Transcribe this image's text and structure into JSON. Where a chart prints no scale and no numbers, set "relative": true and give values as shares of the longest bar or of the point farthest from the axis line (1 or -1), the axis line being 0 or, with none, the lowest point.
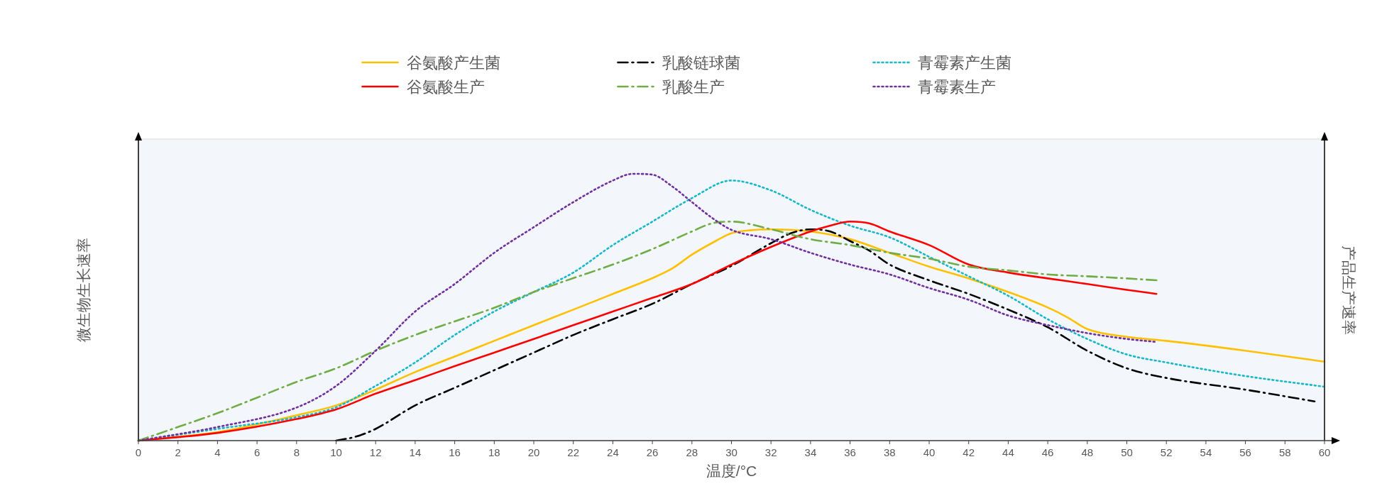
{
  "chart_data": {
    "type": "line",
    "relative": true,
    "xlabel": "温度/°C",
    "ylabel": "微生物生长速率",
    "y2label": "产品生产速率",
    "xlim": [
      0,
      60
    ],
    "xticks": [
      0,
      2,
      4,
      6,
      8,
      10,
      12,
      14,
      16,
      18,
      20,
      22,
      24,
      26,
      28,
      30,
      32,
      34,
      36,
      38,
      40,
      42,
      44,
      46,
      48,
      50,
      52,
      54,
      56,
      58,
      60
    ],
    "legend": "top",
    "series": [
      {
        "name": "谷氨酸产生菌",
        "color": "#ffc000",
        "line_style": "solid",
        "x": [
          0,
          4,
          8,
          10,
          12,
          14,
          16,
          18,
          20,
          22,
          24,
          26,
          27,
          28,
          29,
          30,
          31,
          32,
          34,
          36,
          38,
          40,
          42,
          44,
          46,
          47,
          48,
          50,
          52,
          56,
          60
        ],
        "values": [
          0,
          0.032,
          0.095,
          0.132,
          0.191,
          0.257,
          0.315,
          0.374,
          0.433,
          0.491,
          0.55,
          0.609,
          0.645,
          0.697,
          0.74,
          0.777,
          0.789,
          0.792,
          0.784,
          0.755,
          0.704,
          0.652,
          0.608,
          0.557,
          0.499,
          0.462,
          0.418,
          0.389,
          0.374,
          0.337,
          0.296
        ]
      },
      {
        "name": "乳酸链球菌",
        "color": "#000000",
        "line_style": "dashdot",
        "x": [
          10,
          11,
          12,
          14,
          16,
          18,
          20,
          22,
          24,
          26,
          28,
          30,
          32,
          33,
          34,
          35,
          36,
          37,
          38,
          40,
          42,
          44,
          46,
          48,
          50,
          52,
          56,
          59.5
        ],
        "values": [
          0,
          0.015,
          0.044,
          0.132,
          0.198,
          0.264,
          0.33,
          0.396,
          0.455,
          0.513,
          0.587,
          0.655,
          0.74,
          0.777,
          0.792,
          0.784,
          0.748,
          0.711,
          0.66,
          0.601,
          0.55,
          0.491,
          0.425,
          0.337,
          0.271,
          0.235,
          0.191,
          0.147
        ]
      },
      {
        "name": "青霉素产生菌",
        "color": "#17b8c8",
        "line_style": "dotted",
        "x": [
          0,
          4,
          8,
          10,
          12,
          14,
          16,
          18,
          20,
          22,
          24,
          26,
          28,
          30,
          32,
          34,
          36,
          38,
          40,
          42,
          44,
          46,
          48,
          50,
          52,
          56,
          60
        ],
        "values": [
          0,
          0.044,
          0.088,
          0.125,
          0.205,
          0.293,
          0.396,
          0.484,
          0.557,
          0.63,
          0.733,
          0.821,
          0.909,
          0.975,
          0.938,
          0.865,
          0.806,
          0.762,
          0.689,
          0.616,
          0.543,
          0.455,
          0.381,
          0.323,
          0.293,
          0.242,
          0.202
        ]
      },
      {
        "name": "谷氨酸生产",
        "color": "#ff0000",
        "line_style": "solid",
        "x": [
          0,
          4,
          8,
          10,
          12,
          14,
          16,
          18,
          20,
          22,
          24,
          26,
          28,
          30,
          32,
          34,
          35,
          36,
          37,
          38,
          40,
          42,
          44,
          46,
          48,
          50,
          51.5
        ],
        "values": [
          0,
          0.029,
          0.081,
          0.117,
          0.176,
          0.227,
          0.279,
          0.33,
          0.381,
          0.433,
          0.484,
          0.535,
          0.587,
          0.66,
          0.726,
          0.784,
          0.806,
          0.821,
          0.814,
          0.784,
          0.733,
          0.66,
          0.63,
          0.608,
          0.587,
          0.565,
          0.55
        ]
      },
      {
        "name": "乳酸生产",
        "color": "#70ad47",
        "line_style": "dashdot",
        "x": [
          0,
          2,
          4,
          6,
          8,
          10,
          12,
          14,
          16,
          18,
          20,
          22,
          24,
          26,
          28,
          29,
          30,
          32,
          34,
          36,
          38,
          40,
          42,
          44,
          46,
          48,
          50,
          51.5
        ],
        "values": [
          0,
          0.051,
          0.103,
          0.161,
          0.22,
          0.271,
          0.337,
          0.396,
          0.447,
          0.498,
          0.557,
          0.609,
          0.66,
          0.718,
          0.784,
          0.814,
          0.821,
          0.792,
          0.755,
          0.733,
          0.704,
          0.682,
          0.652,
          0.638,
          0.623,
          0.616,
          0.608,
          0.601
        ]
      },
      {
        "name": "青霉素生产",
        "color": "#7030a0",
        "line_style": "dotted",
        "x": [
          0,
          4,
          8,
          10,
          12,
          14,
          16,
          18,
          20,
          22,
          24,
          25,
          26,
          27,
          28,
          29,
          30,
          32,
          34,
          36,
          38,
          40,
          42,
          44,
          46,
          48,
          50,
          51.5
        ],
        "values": [
          0,
          0.051,
          0.124,
          0.205,
          0.337,
          0.484,
          0.587,
          0.704,
          0.8,
          0.894,
          0.975,
          1,
          0.997,
          0.953,
          0.894,
          0.836,
          0.79,
          0.755,
          0.704,
          0.66,
          0.623,
          0.572,
          0.528,
          0.469,
          0.433,
          0.403,
          0.381,
          0.37
        ]
      }
    ]
  }
}
